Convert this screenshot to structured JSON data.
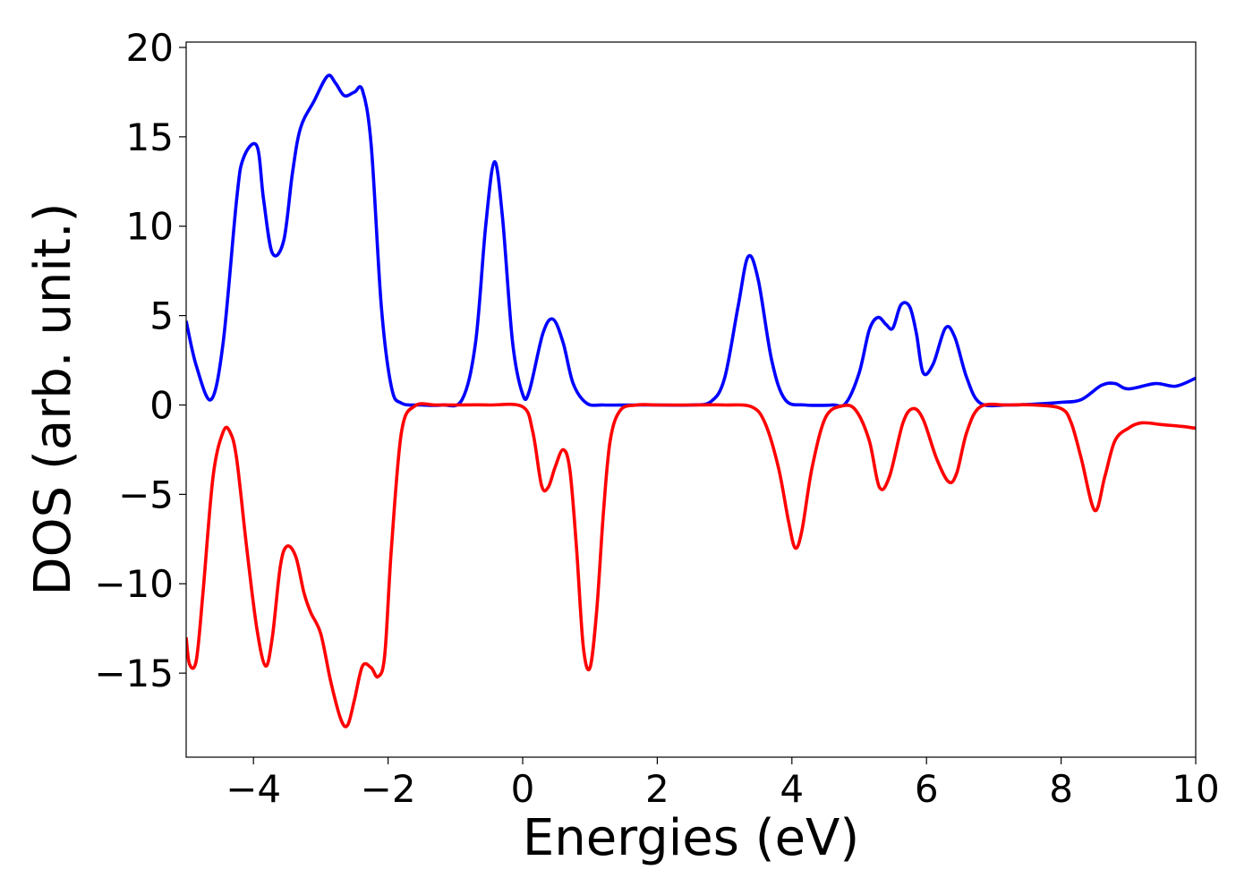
{
  "chart_data": {
    "type": "line",
    "title": "",
    "xlabel": "Energies (eV)",
    "ylabel": "DOS (arb. unit.)",
    "xlim": [
      -5,
      10
    ],
    "ylim": [
      -19.7,
      20.3
    ],
    "xticks": [
      -4,
      -2,
      0,
      2,
      4,
      6,
      8,
      10
    ],
    "xtick_labels": [
      "−4",
      "−2",
      "0",
      "2",
      "4",
      "6",
      "8",
      "10"
    ],
    "yticks": [
      20,
      15,
      10,
      5,
      0,
      -5,
      -10,
      -15
    ],
    "ytick_labels": [
      "20",
      "15",
      "10",
      "5",
      "0",
      "−5",
      "−10",
      "−15"
    ],
    "grid": false,
    "legend": "none",
    "series": [
      {
        "color": "#0000ff",
        "x": [
          -5.0,
          -4.85,
          -4.63,
          -4.45,
          -4.25,
          -4.15,
          -3.95,
          -3.85,
          -3.72,
          -3.55,
          -3.42,
          -3.3,
          -3.1,
          -2.9,
          -2.78,
          -2.65,
          -2.5,
          -2.38,
          -2.25,
          -2.1,
          -1.95,
          -1.8,
          -1.5,
          -1.2,
          -0.9,
          -0.7,
          -0.55,
          -0.42,
          -0.3,
          -0.15,
          0.0,
          0.1,
          0.3,
          0.45,
          0.6,
          0.75,
          0.95,
          1.2,
          1.6,
          2.0,
          2.5,
          2.8,
          3.0,
          3.2,
          3.35,
          3.5,
          3.7,
          3.9,
          4.2,
          4.6,
          4.8,
          5.0,
          5.15,
          5.28,
          5.4,
          5.5,
          5.62,
          5.75,
          5.85,
          5.95,
          6.1,
          6.28,
          6.42,
          6.6,
          6.8,
          7.2,
          7.6,
          8.0,
          8.3,
          8.6,
          8.8,
          9.0,
          9.4,
          9.7,
          10.0
        ],
        "y": [
          4.7,
          2.2,
          0.3,
          3.5,
          11.5,
          13.8,
          14.5,
          11.5,
          8.5,
          9.2,
          13.0,
          15.5,
          17.0,
          18.4,
          18.0,
          17.3,
          17.5,
          17.6,
          14.5,
          5.5,
          1.0,
          0.1,
          0.0,
          0.0,
          0.3,
          3.5,
          10.0,
          13.6,
          10.5,
          3.5,
          0.6,
          0.8,
          4.0,
          4.8,
          3.5,
          1.2,
          0.1,
          0.0,
          0.0,
          0.0,
          0.0,
          0.2,
          1.5,
          5.5,
          8.3,
          7.0,
          2.5,
          0.3,
          0.0,
          0.0,
          0.1,
          1.8,
          4.2,
          4.9,
          4.5,
          4.3,
          5.6,
          5.5,
          4.0,
          1.8,
          2.3,
          4.3,
          3.8,
          1.5,
          0.1,
          0.0,
          0.05,
          0.15,
          0.3,
          1.1,
          1.2,
          0.9,
          1.2,
          1.05,
          1.5
        ]
      },
      {
        "color": "#ff0000",
        "x": [
          -5.0,
          -4.95,
          -4.85,
          -4.75,
          -4.6,
          -4.45,
          -4.35,
          -4.25,
          -4.1,
          -3.95,
          -3.82,
          -3.72,
          -3.6,
          -3.5,
          -3.37,
          -3.25,
          -3.15,
          -3.0,
          -2.85,
          -2.7,
          -2.6,
          -2.5,
          -2.38,
          -2.25,
          -2.15,
          -2.05,
          -1.95,
          -1.8,
          -1.6,
          -1.3,
          -1.0,
          -0.5,
          0.0,
          0.15,
          0.28,
          0.38,
          0.48,
          0.6,
          0.7,
          0.8,
          0.9,
          1.0,
          1.1,
          1.2,
          1.3,
          1.45,
          1.7,
          2.0,
          2.5,
          3.0,
          3.4,
          3.6,
          3.8,
          3.95,
          4.05,
          4.15,
          4.3,
          4.5,
          4.75,
          4.95,
          5.15,
          5.3,
          5.45,
          5.65,
          5.8,
          5.95,
          6.15,
          6.33,
          6.45,
          6.6,
          6.8,
          7.2,
          7.6,
          8.0,
          8.15,
          8.3,
          8.5,
          8.65,
          8.8,
          9.0,
          9.2,
          9.5,
          9.8,
          10.0
        ],
        "y": [
          -13.0,
          -14.5,
          -14.3,
          -10.5,
          -4.0,
          -1.5,
          -1.5,
          -3.0,
          -8.0,
          -12.5,
          -14.6,
          -13.0,
          -9.0,
          -7.9,
          -8.5,
          -10.5,
          -11.6,
          -12.8,
          -15.5,
          -17.6,
          -17.9,
          -16.5,
          -14.6,
          -14.7,
          -15.2,
          -14.0,
          -8.0,
          -1.5,
          -0.05,
          0.0,
          0.0,
          0.0,
          -0.1,
          -1.5,
          -4.5,
          -4.6,
          -3.5,
          -2.5,
          -3.6,
          -8.0,
          -13.5,
          -14.7,
          -11.5,
          -6.0,
          -2.0,
          -0.3,
          0.0,
          0.0,
          0.0,
          0.0,
          -0.1,
          -1.0,
          -3.5,
          -6.5,
          -8.0,
          -7.0,
          -3.5,
          -0.7,
          -0.05,
          -0.3,
          -2.0,
          -4.6,
          -4.0,
          -1.0,
          -0.2,
          -0.8,
          -3.0,
          -4.3,
          -3.8,
          -1.5,
          -0.1,
          0.0,
          0.0,
          -0.2,
          -1.0,
          -3.0,
          -5.9,
          -4.0,
          -2.0,
          -1.3,
          -1.0,
          -1.1,
          -1.2,
          -1.3
        ]
      }
    ]
  }
}
